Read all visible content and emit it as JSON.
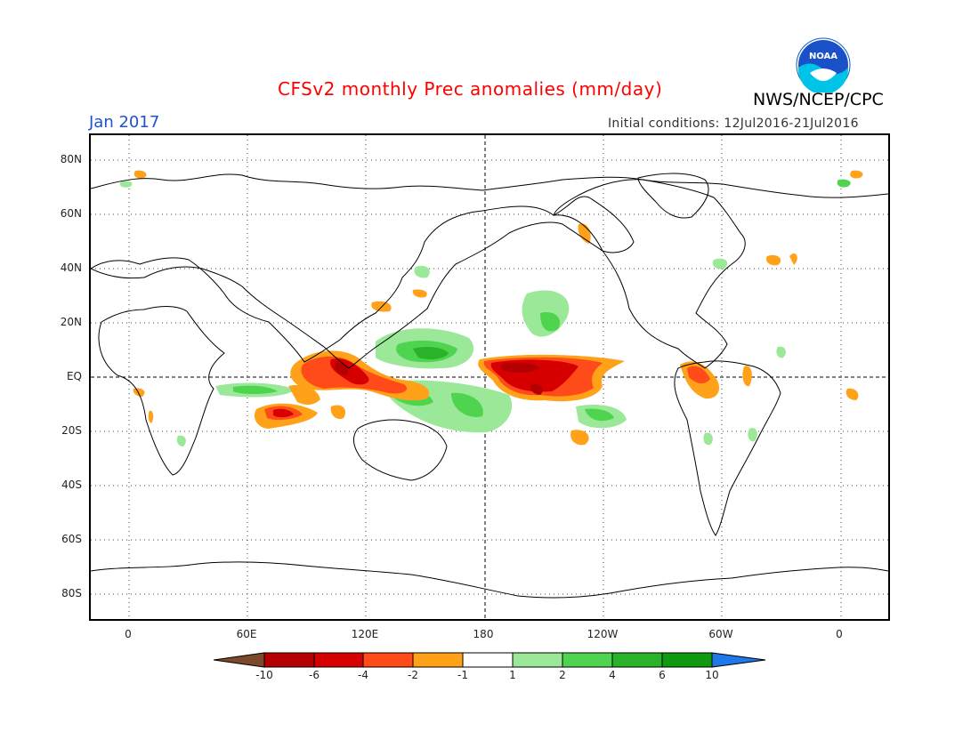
{
  "header": {
    "title": "CFSv2 monthly Prec anomalies (mm/day)",
    "agency": "NWS/NCEP/CPC",
    "month": "Jan 2017",
    "initial_conditions": "Initial conditions: 12Jul2016-21Jul2016",
    "logo_text": "NOAA"
  },
  "axes": {
    "y_labels": [
      "80N",
      "60N",
      "40N",
      "20N",
      "EQ",
      "20S",
      "40S",
      "60S",
      "80S"
    ],
    "x_labels": [
      "0",
      "60E",
      "120E",
      "180",
      "120W",
      "60W",
      "0"
    ]
  },
  "colorbar": {
    "ticks": [
      "-10",
      "-6",
      "-4",
      "-2",
      "-1",
      "1",
      "2",
      "4",
      "6",
      "10"
    ],
    "colors": {
      "lt_-10": "#7b4a2a",
      "-10_-6": "#b40000",
      "-6_-4": "#d60000",
      "-4_-2": "#ff4a1a",
      "-2_-1": "#ffa21a",
      "-1_1": "#ffffff",
      "1_2": "#9ae898",
      "2_4": "#4fd44f",
      "4_6": "#2ab22a",
      "6_10": "#0f9a0f",
      "gt_10": "#1f78e8"
    }
  }
}
